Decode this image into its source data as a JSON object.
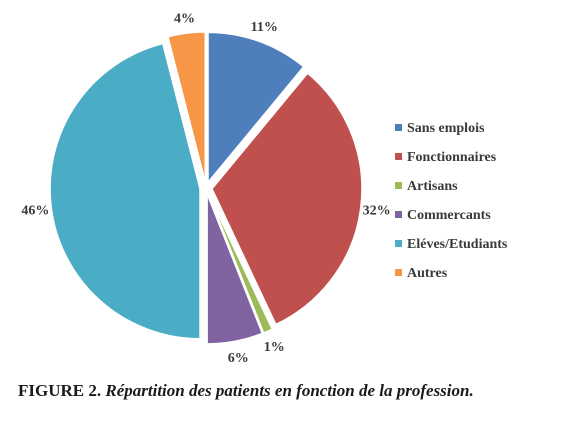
{
  "chart_data": {
    "type": "pie",
    "slices": [
      {
        "name": "Sans emplois",
        "value": 11,
        "label": "11%",
        "color": "#4f7ebd"
      },
      {
        "name": "Fonctionnaires",
        "value": 32,
        "label": "32%",
        "color": "#c0504d"
      },
      {
        "name": "Artisans",
        "value": 1,
        "label": "1%",
        "color": "#9bbb59"
      },
      {
        "name": "Commercants",
        "value": 6,
        "label": "6%",
        "color": "#8064a2"
      },
      {
        "name": "Eléves/Etudiants",
        "value": 46,
        "label": "46%",
        "color": "#4bacc6"
      },
      {
        "name": "Autres",
        "value": 4,
        "label": "4%",
        "color": "#f79646"
      }
    ],
    "legend_position": "right",
    "exploded": true
  },
  "caption": {
    "label": "FIGURE 2.",
    "text": "Répartition des patients en fonction de la profession."
  }
}
